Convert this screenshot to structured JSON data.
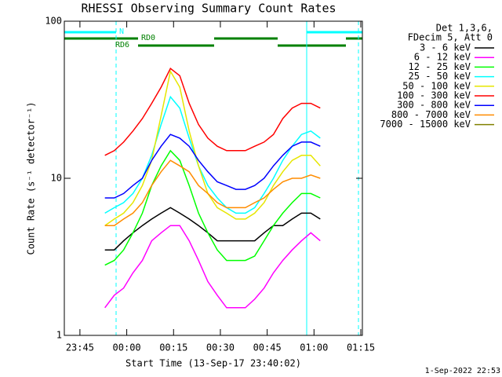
{
  "chart_data": {
    "type": "line",
    "title": "RHESSI Observing Summary Count Rates",
    "x_label": "Start Time (13-Sep-17 23:40:02)",
    "y_label": "Count Rate (s⁻¹ detector⁻¹)",
    "legend_header": [
      "Det 1,3,6,",
      "FDecim 5, Att 0"
    ],
    "footer": "1-Sep-2022 22:53",
    "annotations": [
      "N",
      "RD0",
      "RD6"
    ],
    "log_y": true,
    "xlim": [
      0,
      95.5
    ],
    "xticks": [
      {
        "value": 5,
        "label": "23:45"
      },
      {
        "value": 20,
        "label": "00:00"
      },
      {
        "value": 35,
        "label": "00:15"
      },
      {
        "value": 50,
        "label": "00:30"
      },
      {
        "value": 65,
        "label": "00:45"
      },
      {
        "value": 80,
        "label": "01:00"
      },
      {
        "value": 95,
        "label": "01:15"
      }
    ],
    "ylim": [
      1,
      100
    ],
    "yticks": [
      1,
      10,
      100
    ],
    "x": [
      13,
      16,
      19,
      22,
      25,
      28,
      31,
      34,
      37,
      40,
      43,
      46,
      49,
      52,
      55,
      58,
      61,
      64,
      67,
      70,
      73,
      76,
      79,
      82
    ],
    "series": [
      {
        "name": "3 - 6 keV",
        "color": "#000000",
        "values": [
          3.5,
          3.5,
          4,
          4.5,
          5,
          5.5,
          6,
          6.5,
          6,
          5.5,
          5,
          4.5,
          4,
          4,
          4,
          4,
          4,
          4.5,
          5,
          5,
          5.5,
          6,
          6,
          5.5
        ]
      },
      {
        "name": "6 - 12 keV",
        "color": "#ff00ff",
        "values": [
          1.5,
          1.8,
          2,
          2.5,
          3,
          4,
          4.5,
          5,
          5,
          4,
          3,
          2.2,
          1.8,
          1.5,
          1.5,
          1.5,
          1.7,
          2,
          2.5,
          3,
          3.5,
          4,
          4.5,
          4
        ]
      },
      {
        "name": "12 - 25 keV",
        "color": "#00ff00",
        "values": [
          2.8,
          3,
          3.5,
          4.5,
          6,
          9,
          12,
          15,
          13,
          9,
          6,
          4.5,
          3.5,
          3,
          3,
          3,
          3.2,
          4,
          5,
          6,
          7,
          8,
          8,
          7.5
        ]
      },
      {
        "name": "25 - 50 keV",
        "color": "#00ffff",
        "values": [
          6,
          6.5,
          7,
          8,
          10,
          14,
          22,
          33,
          28,
          18,
          12,
          9,
          7.5,
          6.5,
          6,
          6,
          6.5,
          8,
          10,
          13,
          16,
          19,
          20,
          18
        ]
      },
      {
        "name": "50 - 100 keV",
        "color": "#e6e600",
        "values": [
          5,
          5.5,
          6,
          7,
          9,
          13,
          25,
          48,
          38,
          20,
          12,
          8,
          6.5,
          6,
          5.5,
          5.5,
          6,
          7,
          9,
          11,
          13,
          14,
          14,
          12
        ]
      },
      {
        "name": "100 - 300 keV",
        "color": "#ff0000",
        "values": [
          14,
          15,
          17,
          20,
          24,
          30,
          38,
          50,
          45,
          30,
          22,
          18,
          16,
          15,
          15,
          15,
          16,
          17,
          19,
          24,
          28,
          30,
          30,
          28
        ]
      },
      {
        "name": "300 - 800 keV",
        "color": "#0000ff",
        "values": [
          7.5,
          7.5,
          8,
          9,
          10,
          13,
          16,
          19,
          18,
          16,
          13,
          11,
          9.5,
          9,
          8.5,
          8.5,
          9,
          10,
          12,
          14,
          16,
          17,
          17,
          16
        ]
      },
      {
        "name": "800 - 7000 keV",
        "color": "#ff8c00",
        "values": [
          5,
          5,
          5.5,
          6,
          7,
          9,
          11,
          13,
          12,
          11,
          9,
          8,
          7,
          6.5,
          6.5,
          6.5,
          7,
          7.5,
          8.5,
          9.5,
          10,
          10,
          10.5,
          10
        ]
      },
      {
        "name": "7000 - 15000 keV",
        "color": "#808000",
        "values": [
          null,
          null,
          null,
          null,
          null,
          null,
          null,
          null,
          null,
          null,
          null,
          null,
          null,
          null,
          null,
          null,
          null,
          null,
          null,
          null,
          null,
          null,
          null,
          null
        ]
      }
    ]
  }
}
